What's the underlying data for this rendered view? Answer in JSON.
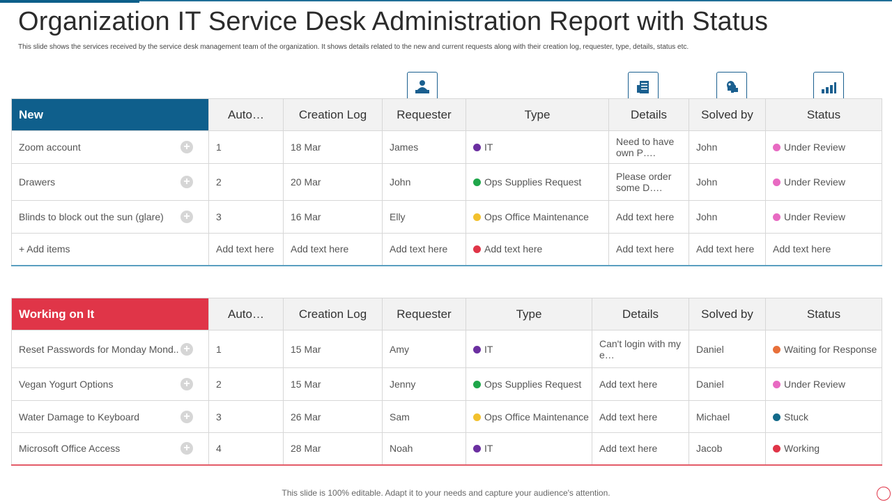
{
  "title": "Organization IT Service Desk Administration Report with Status",
  "subtitle": "This slide shows the services received by the service desk management team of the organization. It shows details related to the new and current requests along with their creation log, requester, type, details, status etc.",
  "footer": "This slide is 100% editable. Adapt it to your needs and capture your audience's attention.",
  "icons": [
    "person-at-desk-icon",
    "document-list-icon",
    "puzzle-head-icon",
    "bar-chart-icon"
  ],
  "colors": {
    "new_header": "#0f5f8c",
    "working_header": "#e03548",
    "it": "#6b2fa0",
    "ops_supplies": "#1fa64a",
    "ops_office": "#f2c12e",
    "add_item": "#e03548",
    "under_review": "#e86ac2",
    "waiting": "#e8703a",
    "stuck": "#136a8a",
    "working": "#e03548"
  },
  "headers": {
    "auto": "Auto…",
    "creation_log": "Creation Log",
    "requester": "Requester",
    "type": "Type",
    "details": "Details",
    "solved_by": "Solved by",
    "status": "Status"
  },
  "new_group": {
    "label": "New",
    "rows": [
      {
        "item": "Zoom account",
        "auto": "1",
        "log": "18 Mar",
        "requester": "James",
        "type": "IT",
        "details": "Need to have own P….",
        "solved_by": "John",
        "status": "Under Review"
      },
      {
        "item": "Drawers",
        "auto": "2",
        "log": "20 Mar",
        "requester": "John",
        "type": "Ops Supplies Request",
        "details": "Please order some D….",
        "solved_by": "John",
        "status": "Under Review"
      },
      {
        "item": "Blinds to block out the sun (glare)",
        "auto": "3",
        "log": "16 Mar",
        "requester": "Elly",
        "type": "Ops Office Maintenance",
        "details": "Add text here",
        "solved_by": "John",
        "status": "Under Review"
      }
    ],
    "add_row": {
      "item": "+ Add items",
      "auto": "Add text here",
      "log": "Add text here",
      "requester": "Add text here",
      "type": "Add text here",
      "details": "Add text here",
      "solved_by": "Add text here",
      "status": "Add text here"
    }
  },
  "working_group": {
    "label": "Working on It",
    "rows": [
      {
        "item": "Reset Passwords for Monday Mond..",
        "auto": "1",
        "log": "15 Mar",
        "requester": "Amy",
        "type": "IT",
        "details": "Can't login with my e…",
        "solved_by": "Daniel",
        "status": "Waiting for Response"
      },
      {
        "item": "Vegan Yogurt Options",
        "auto": "2",
        "log": "15 Mar",
        "requester": "Jenny",
        "type": "Ops Supplies Request",
        "details": "Add text here",
        "solved_by": "Daniel",
        "status": "Under Review"
      },
      {
        "item": "Water Damage to Keyboard",
        "auto": "3",
        "log": "26 Mar",
        "requester": "Sam",
        "type": "Ops Office Maintenance",
        "details": "Add text here",
        "solved_by": "Michael",
        "status": "Stuck"
      },
      {
        "item": "Microsoft Office Access",
        "auto": "4",
        "log": "28 Mar",
        "requester": "Noah",
        "type": "IT",
        "details": "Add text here",
        "solved_by": "Jacob",
        "status": "Working"
      }
    ]
  }
}
